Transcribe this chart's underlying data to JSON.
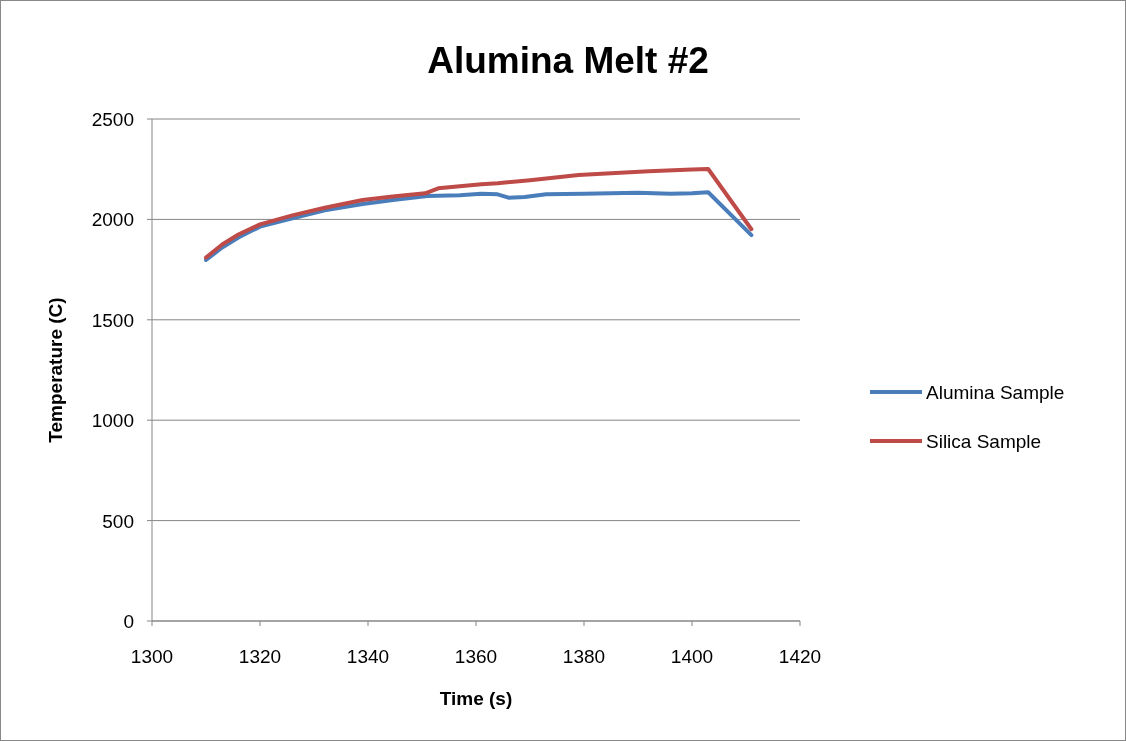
{
  "chart_data": {
    "type": "line",
    "title": "Alumina Melt #2",
    "xlabel": "Time (s)",
    "ylabel": "Temperature (C)",
    "xlim": [
      1300,
      1420
    ],
    "xticks": [
      1300,
      1320,
      1340,
      1360,
      1380,
      1400,
      1420
    ],
    "ylim": [
      0,
      2500
    ],
    "yticks": [
      0,
      500,
      1000,
      1500,
      2000,
      2500
    ],
    "grid": "y",
    "legend": "right",
    "line_style": "solid",
    "series": [
      {
        "name": "Alumina Sample",
        "color": "#4a7ebb",
        "x": [
          1310,
          1313,
          1316,
          1320,
          1326,
          1332,
          1339,
          1345,
          1351,
          1357,
          1361,
          1364,
          1366,
          1369,
          1373,
          1380,
          1390,
          1396,
          1400,
          1403,
          1411
        ],
        "values": [
          1798,
          1860,
          1910,
          1964,
          2005,
          2045,
          2077,
          2098,
          2117,
          2120,
          2128,
          2125,
          2108,
          2112,
          2125,
          2128,
          2133,
          2128,
          2130,
          2135,
          1922
        ]
      },
      {
        "name": "Silica Sample",
        "color": "#be4b48",
        "x": [
          1310,
          1313,
          1316,
          1320,
          1326,
          1332,
          1339,
          1345,
          1350.6,
          1353,
          1357,
          1361,
          1364,
          1370,
          1379,
          1385,
          1392,
          1400,
          1403,
          1411
        ],
        "values": [
          1810,
          1875,
          1925,
          1975,
          2020,
          2058,
          2097,
          2115,
          2130,
          2155,
          2165,
          2175,
          2180,
          2195,
          2221,
          2230,
          2240,
          2248,
          2251,
          1951
        ]
      }
    ]
  }
}
